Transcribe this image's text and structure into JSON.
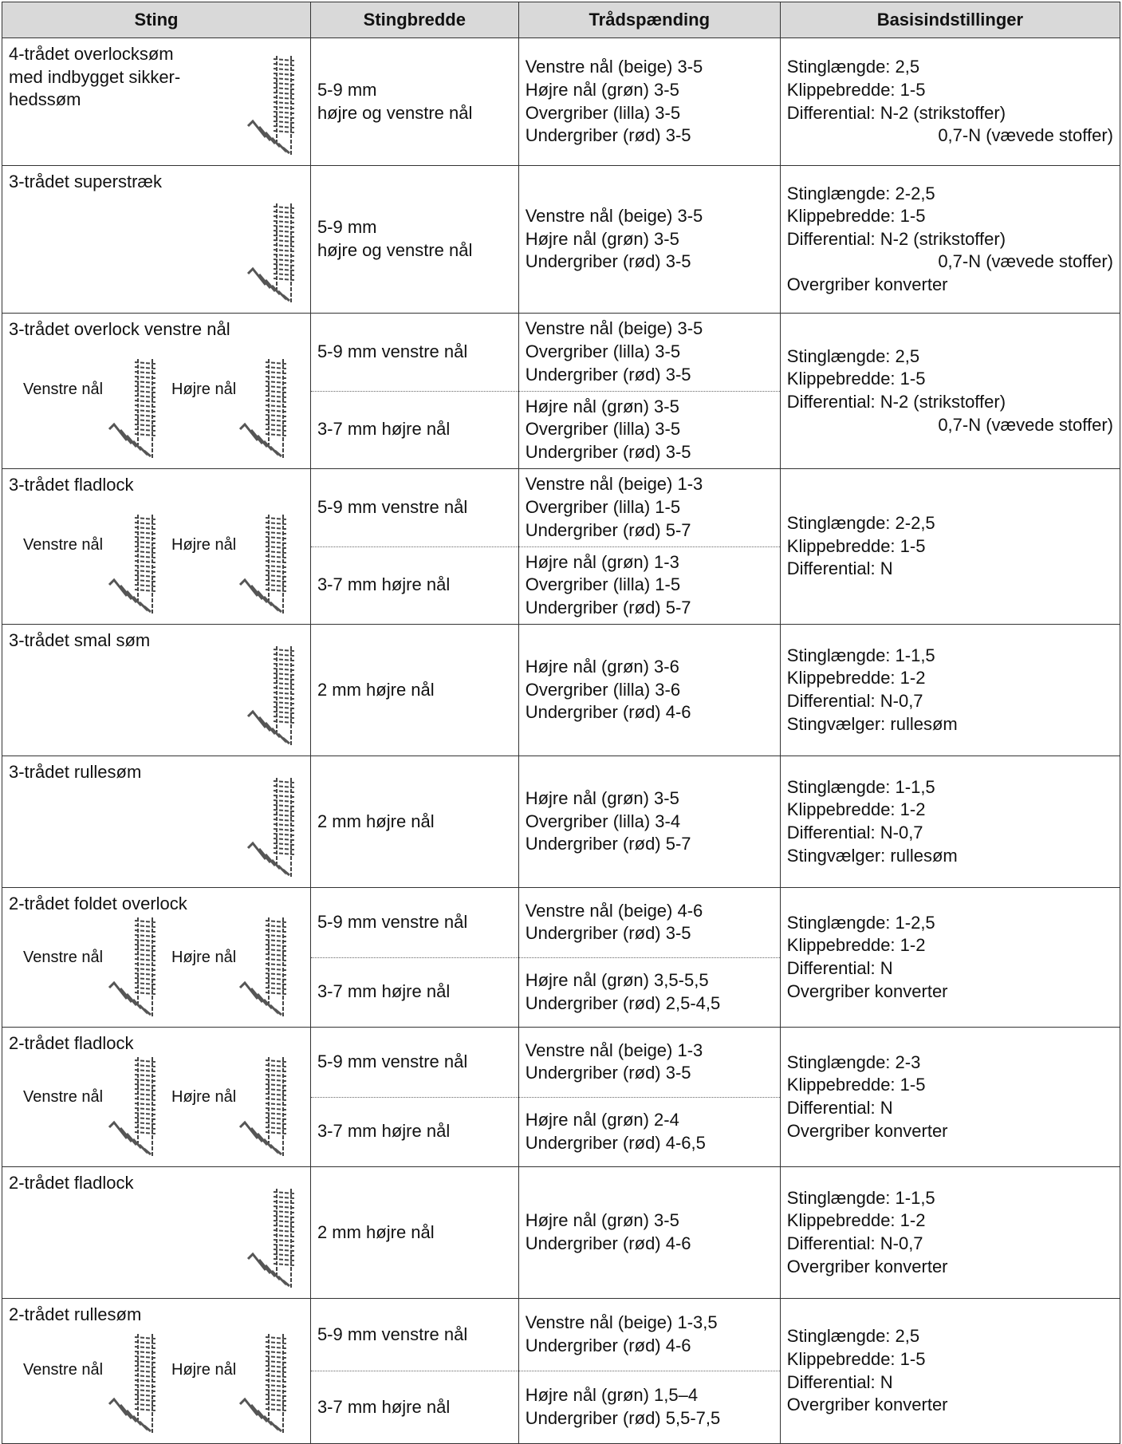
{
  "table": {
    "header": [
      "Sting",
      "Stingbredde",
      "Trådspænding",
      "Basisindstillinger"
    ],
    "rows": [
      {
        "sting": [
          "4-trådet overlocksøm",
          "med indbygget sikker-",
          "hedssøm"
        ],
        "variants": [
          {
            "width": [
              "5-9 mm",
              "højre og venstre nål"
            ],
            "tension": [
              "Venstre nål (beige) 3-5",
              "Højre nål (grøn) 3-5",
              "Overgriber (lilla) 3-5",
              "Undergriber (rød) 3-5"
            ]
          }
        ],
        "settings": [
          "Stinglængde: 2,5",
          "Klippebredde: 1-5",
          [
            "Differential: N-2 (strikstoffer)",
            "0,7-N (vævede stoffer)"
          ]
        ]
      },
      {
        "sting": [
          "3-trådet superstræk"
        ],
        "variants": [
          {
            "width": [
              "5-9 mm",
              "højre og venstre nål"
            ],
            "tension": [
              "Venstre nål (beige) 3-5",
              "Højre nål (grøn) 3-5",
              "Undergriber (rød) 3-5"
            ]
          }
        ],
        "settings": [
          "Stinglængde: 2-2,5",
          "Klippebredde: 1-5",
          [
            "Differential: N-2 (strikstoffer)",
            "0,7-N (vævede stoffer)"
          ],
          "Overgriber konverter"
        ]
      },
      {
        "sting": [
          "3-trådet overlock venstre nål"
        ],
        "labels": [
          "Venstre nål",
          "Højre nål"
        ],
        "variants": [
          {
            "width": [
              "5-9 mm venstre nål"
            ],
            "tension": [
              "Venstre nål (beige) 3-5",
              "Overgriber (lilla) 3-5",
              "Undergriber (rød) 3-5"
            ]
          },
          {
            "width": [
              "3-7 mm højre nål"
            ],
            "tension": [
              "Højre nål (grøn) 3-5",
              "Overgriber (lilla) 3-5",
              "Undergriber (rød) 3-5"
            ]
          }
        ],
        "settings": [
          "Stinglængde: 2,5",
          "Klippebredde: 1-5",
          [
            "Differential: N-2 (strikstoffer)",
            "0,7-N (vævede stoffer)"
          ]
        ]
      },
      {
        "sting": [
          "3-trådet fladlock"
        ],
        "labels": [
          "Venstre nål",
          "Højre nål"
        ],
        "variants": [
          {
            "width": [
              "5-9 mm venstre nål"
            ],
            "tension": [
              "Venstre nål (beige) 1-3",
              "Overgriber (lilla) 1-5",
              "Undergriber (rød) 5-7"
            ]
          },
          {
            "width": [
              "3-7 mm højre nål"
            ],
            "tension": [
              "Højre nål (grøn) 1-3",
              "Overgriber (lilla) 1-5",
              "Undergriber (rød) 5-7"
            ]
          }
        ],
        "settings": [
          "Stinglængde: 2-2,5",
          "Klippebredde: 1-5",
          "Differential: N"
        ]
      },
      {
        "sting": [
          "3-trådet smal søm"
        ],
        "variants": [
          {
            "width": [
              "2 mm højre nål"
            ],
            "tension": [
              "Højre nål (grøn) 3-6",
              "Overgriber (lilla) 3-6",
              "Undergriber (rød) 4-6"
            ]
          }
        ],
        "settings": [
          "Stinglængde: 1-1,5",
          "Klippebredde: 1-2",
          "Differential: N-0,7",
          "Stingvælger: rullesøm"
        ]
      },
      {
        "sting": [
          "3-trådet rullesøm"
        ],
        "variants": [
          {
            "width": [
              "2 mm højre nål"
            ],
            "tension": [
              "Højre nål (grøn) 3-5",
              "Overgriber (lilla) 3-4",
              "Undergriber (rød) 5-7"
            ]
          }
        ],
        "settings": [
          "Stinglængde: 1-1,5",
          "Klippebredde: 1-2",
          "Differential: N-0,7",
          "Stingvælger: rullesøm"
        ]
      },
      {
        "sting": [
          "2-trådet foldet overlock"
        ],
        "labels": [
          "Venstre nål",
          "Højre nål"
        ],
        "variants": [
          {
            "width": [
              "5-9 mm venstre nål"
            ],
            "tension": [
              "Venstre nål (beige) 4-6",
              "Undergriber (rød) 3-5"
            ]
          },
          {
            "width": [
              "3-7 mm højre nål"
            ],
            "tension": [
              "Højre nål (grøn) 3,5-5,5",
              "Undergriber (rød) 2,5-4,5"
            ]
          }
        ],
        "settings": [
          "Stinglængde: 1-2,5",
          "Klippebredde: 1-2",
          "Differential: N",
          "Overgriber konverter"
        ]
      },
      {
        "sting": [
          "2-trådet fladlock"
        ],
        "labels": [
          "Venstre nål",
          "Højre nål"
        ],
        "variants": [
          {
            "width": [
              "5-9 mm venstre nål"
            ],
            "tension": [
              "Venstre nål (beige) 1-3",
              "Undergriber (rød) 3-5"
            ]
          },
          {
            "width": [
              "3-7 mm højre nål"
            ],
            "tension": [
              "Højre nål (grøn) 2-4",
              "Undergriber (rød) 4-6,5"
            ]
          }
        ],
        "settings": [
          "Stinglængde: 2-3",
          "Klippebredde: 1-5",
          "Differential: N",
          "Overgriber konverter"
        ]
      },
      {
        "sting": [
          "2-trådet fladlock"
        ],
        "variants": [
          {
            "width": [
              "2 mm højre nål"
            ],
            "tension": [
              "Højre nål (grøn) 3-5",
              "Undergriber (rød) 4-6"
            ]
          }
        ],
        "settings": [
          "Stinglængde: 1-1,5",
          "Klippebredde: 1-2",
          "Differential: N-0,7",
          "Overgriber konverter"
        ]
      },
      {
        "sting": [
          "2-trådet rullesøm"
        ],
        "labels": [
          "Venstre nål",
          "Højre nål"
        ],
        "variants": [
          {
            "width": [
              "5-9 mm venstre nål"
            ],
            "tension": [
              "Venstre nål (beige) 1-3,5",
              "Undergriber (rød) 4-6"
            ]
          },
          {
            "width": [
              "3-7 mm højre nål"
            ],
            "tension": [
              "Højre nål (grøn) 1,5–4",
              "Undergriber (rød) 5,5-7,5"
            ]
          }
        ],
        "settings": [
          "Stinglængde: 2,5",
          "Klippebredde: 1-5",
          "Differential: N",
          "Overgriber konverter"
        ]
      }
    ]
  }
}
